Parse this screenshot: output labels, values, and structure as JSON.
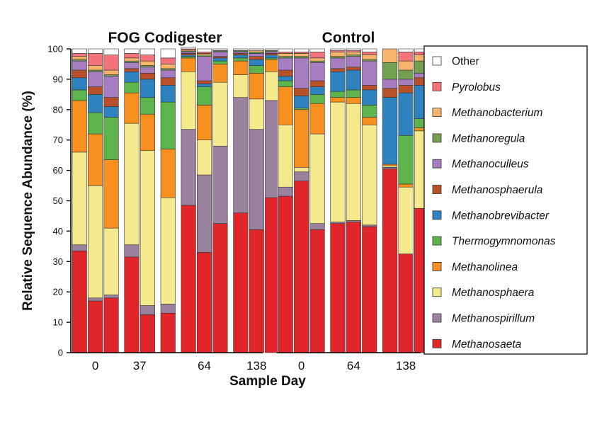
{
  "chart_data": {
    "type": "bar",
    "stacked": true,
    "ylabel": "Relative Sequence Abundance (%)",
    "xlabel": "Sample Day",
    "ylim": [
      0,
      100
    ],
    "yticks": [
      0,
      10,
      20,
      30,
      40,
      50,
      60,
      70,
      80,
      90,
      100
    ],
    "legend": {
      "position": "right",
      "order": [
        "Other",
        "Pyrolobus",
        "Methanobacterium",
        "Methanoregula",
        "Methanoculleus",
        "Methanosphaerula",
        "Methanobrevibacter",
        "Thermogymnomonas",
        "Methanolinea",
        "Methanosphaera",
        "Methanospirillum",
        "Methanosaeta"
      ]
    },
    "stack_order": [
      "Methanosaeta",
      "Methanospirillum",
      "Methanosphaera",
      "Methanolinea",
      "Thermogymnomonas",
      "Methanobrevibacter",
      "Methanosphaerula",
      "Methanoculleus",
      "Methanoregula",
      "Methanobacterium",
      "Pyrolobus",
      "Other"
    ],
    "colors": {
      "Methanosaeta": "#e0262b",
      "Methanospirillum": "#9a819d",
      "Methanosphaera": "#f5e98e",
      "Methanolinea": "#f7901e",
      "Thermogymnomonas": "#5db44c",
      "Methanobrevibacter": "#2f82c0",
      "Methanosphaerula": "#b8512a",
      "Methanoculleus": "#a77dc1",
      "Methanoregula": "#72a050",
      "Methanobacterium": "#f8b36c",
      "Pyrolobus": "#f2737a",
      "Other": "#ffffff"
    },
    "panels": [
      {
        "title": "FOG Codigester",
        "groups": [
          {
            "label": "0",
            "bars": [
              {
                "Methanosaeta": 33.5,
                "Methanospirillum": 2,
                "Methanosphaera": 30.5,
                "Methanolinea": 17,
                "Thermogymnomonas": 3.5,
                "Methanobrevibacter": 4,
                "Methanosphaerula": 2.5,
                "Methanoculleus": 3,
                "Methanoregula": 0.5,
                "Methanobacterium": 1,
                "Pyrolobus": 1,
                "Other": 1.5
              },
              {
                "Methanosaeta": 17,
                "Methanospirillum": 1,
                "Methanosphaera": 37,
                "Methanolinea": 17,
                "Thermogymnomonas": 7,
                "Methanobrevibacter": 6,
                "Methanosphaerula": 2.5,
                "Methanoculleus": 5,
                "Methanoregula": 0.5,
                "Methanobacterium": 1.5,
                "Pyrolobus": 4,
                "Other": 1.5
              },
              {
                "Methanosaeta": 18,
                "Methanospirillum": 1,
                "Methanosphaera": 22,
                "Methanolinea": 22.5,
                "Thermogymnomonas": 14,
                "Methanobrevibacter": 3.5,
                "Methanosphaerula": 3,
                "Methanoculleus": 7,
                "Methanoregula": 0.5,
                "Methanobacterium": 1.5,
                "Pyrolobus": 5,
                "Other": 2
              }
            ]
          },
          {
            "label": "37",
            "bars": [
              {
                "Methanosaeta": 31.5,
                "Methanospirillum": 4,
                "Methanosphaera": 40,
                "Methanolinea": 10,
                "Thermogymnomonas": 3.5,
                "Methanobrevibacter": 3.5,
                "Methanosphaerula": 1,
                "Methanoculleus": 2,
                "Methanoregula": 0.5,
                "Methanobacterium": 1,
                "Pyrolobus": 1.5,
                "Other": 1.5
              },
              {
                "Methanosaeta": 12.5,
                "Methanospirillum": 3,
                "Methanosphaera": 51,
                "Methanolinea": 12,
                "Thermogymnomonas": 5.5,
                "Methanobrevibacter": 6,
                "Methanosphaerula": 2,
                "Methanoculleus": 2,
                "Methanoregula": 0.5,
                "Methanobacterium": 1.5,
                "Pyrolobus": 2,
                "Other": 2
              }
            ]
          },
          {
            "label": "",
            "bars": [
              {
                "Methanosaeta": 13,
                "Methanospirillum": 3,
                "Methanosphaera": 35,
                "Methanolinea": 16,
                "Thermogymnomonas": 15.5,
                "Methanobrevibacter": 5.5,
                "Methanosphaerula": 2.5,
                "Methanoculleus": 2.5,
                "Methanoregula": 0.5,
                "Methanobacterium": 1.5,
                "Pyrolobus": 2,
                "Other": 3
              }
            ]
          },
          {
            "label": "64",
            "bars": [
              {
                "Methanosaeta": 48.5,
                "Methanospirillum": 25,
                "Methanosphaera": 19,
                "Methanolinea": 4.5,
                "Thermogymnomonas": 0.5,
                "Methanobrevibacter": 0.5,
                "Methanosphaerula": 0.5,
                "Methanoculleus": 0.5,
                "Methanoregula": 0.3,
                "Methanobacterium": 0.4,
                "Pyrolobus": 0.3,
                "Other": 0.5
              },
              {
                "Methanosaeta": 33,
                "Methanospirillum": 25.5,
                "Methanosphaera": 11.5,
                "Methanolinea": 11.5,
                "Thermogymnomonas": 6,
                "Methanobrevibacter": 1,
                "Methanosphaerula": 1,
                "Methanoculleus": 8,
                "Methanoregula": 0.5,
                "Methanobacterium": 0.5,
                "Pyrolobus": 0.5,
                "Other": 1
              },
              {
                "Methanosaeta": 42.5,
                "Methanospirillum": 25.5,
                "Methanosphaera": 21,
                "Methanolinea": 6,
                "Thermogymnomonas": 1,
                "Methanobrevibacter": 1,
                "Methanosphaerula": 0.5,
                "Methanoculleus": 1.5,
                "Methanoregula": 0.3,
                "Methanobacterium": 0.2,
                "Pyrolobus": 0,
                "Other": 0.5
              }
            ]
          },
          {
            "label": "138",
            "bars": [
              {
                "Methanosaeta": 46,
                "Methanospirillum": 38,
                "Methanosphaera": 7.5,
                "Methanolinea": 4.5,
                "Thermogymnomonas": 1,
                "Methanobrevibacter": 1,
                "Methanosphaerula": 0.5,
                "Methanoculleus": 0.5,
                "Methanoregula": 0.3,
                "Methanobacterium": 0.2,
                "Pyrolobus": 0,
                "Other": 0.5
              },
              {
                "Methanosaeta": 40.5,
                "Methanospirillum": 33,
                "Methanosphaera": 10,
                "Methanolinea": 8.5,
                "Thermogymnomonas": 2.5,
                "Methanobrevibacter": 2,
                "Methanosphaerula": 1,
                "Methanoculleus": 1,
                "Methanoregula": 0.5,
                "Methanobacterium": 0.5,
                "Pyrolobus": 0,
                "Other": 0.5
              },
              {
                "Methanosaeta": 51,
                "Methanospirillum": 32,
                "Methanosphaera": 9.5,
                "Methanolinea": 4,
                "Thermogymnomonas": 0.5,
                "Methanobrevibacter": 1,
                "Methanosphaerula": 0.5,
                "Methanoculleus": 0.5,
                "Methanoregula": 0.3,
                "Methanobacterium": 0.2,
                "Pyrolobus": 0,
                "Other": 0.5
              }
            ]
          }
        ]
      },
      {
        "title": "Control",
        "groups": [
          {
            "label": "0",
            "bars": [
              {
                "Methanosaeta": 51.5,
                "Methanospirillum": 3,
                "Methanosphaera": 20.5,
                "Methanolinea": 12.5,
                "Thermogymnomonas": 2,
                "Methanobrevibacter": 1.5,
                "Methanosphaerula": 2,
                "Methanoculleus": 4,
                "Methanoregula": 0.5,
                "Methanobacterium": 1,
                "Pyrolobus": 0.5,
                "Other": 1
              },
              {
                "Methanosaeta": 56.5,
                "Methanospirillum": 3,
                "Methanosphaera": 1.5,
                "Methanolinea": 19,
                "Thermogymnomonas": 0.5,
                "Methanobrevibacter": 4,
                "Methanosphaerula": 2.5,
                "Methanoculleus": 10,
                "Methanoregula": 0.5,
                "Methanobacterium": 1,
                "Pyrolobus": 0.5,
                "Other": 1
              },
              {
                "Methanosaeta": 40.5,
                "Methanospirillum": 2,
                "Methanosphaera": 29.5,
                "Methanolinea": 10,
                "Thermogymnomonas": 3,
                "Methanobrevibacter": 2.5,
                "Methanosphaerula": 2,
                "Methanoculleus": 6,
                "Methanoregula": 0.5,
                "Methanobacterium": 1,
                "Pyrolobus": 2,
                "Other": 1
              }
            ]
          },
          {
            "label": "64",
            "bars": [
              {
                "Methanosaeta": 42.5,
                "Methanospirillum": 0.5,
                "Methanosphaera": 39.5,
                "Methanolinea": 1.5,
                "Thermogymnomonas": 2,
                "Methanobrevibacter": 6.5,
                "Methanosphaerula": 1,
                "Methanoculleus": 3.5,
                "Methanoregula": 0.5,
                "Methanobacterium": 1.5,
                "Pyrolobus": 0.5,
                "Other": 0.5
              },
              {
                "Methanosaeta": 43,
                "Methanospirillum": 0.5,
                "Methanosphaera": 38.5,
                "Methanolinea": 2,
                "Thermogymnomonas": 2.5,
                "Methanobrevibacter": 6.5,
                "Methanosphaerula": 1,
                "Methanoculleus": 3.5,
                "Methanoregula": 0.5,
                "Methanobacterium": 1,
                "Pyrolobus": 0.5,
                "Other": 0.5
              },
              {
                "Methanosaeta": 41.5,
                "Methanospirillum": 0.5,
                "Methanosphaera": 33,
                "Methanolinea": 2.5,
                "Thermogymnomonas": 4,
                "Methanobrevibacter": 5,
                "Methanosphaerula": 1.5,
                "Methanoculleus": 8,
                "Methanoregula": 0.5,
                "Methanobacterium": 1.5,
                "Pyrolobus": 1,
                "Other": 1
              }
            ]
          },
          {
            "label": "138",
            "bars": [
              {
                "Methanosaeta": 60.5,
                "Methanospirillum": 0.5,
                "Methanosphaera": 0.5,
                "Methanolinea": 0.5,
                "Thermogymnomonas": 0,
                "Methanobrevibacter": 22,
                "Methanosphaerula": 3,
                "Methanoculleus": 3,
                "Methanoregula": 5.5,
                "Methanobacterium": 4.5,
                "Pyrolobus": 0,
                "Other": 0
              },
              {
                "Methanosaeta": 32.5,
                "Methanospirillum": 0,
                "Methanosphaera": 22,
                "Methanolinea": 1,
                "Thermogymnomonas": 16,
                "Methanobrevibacter": 14,
                "Methanosphaerula": 2.5,
                "Methanoculleus": 2,
                "Methanoregula": 3,
                "Methanobacterium": 3,
                "Pyrolobus": 3,
                "Other": 1
              },
              {
                "Methanosaeta": 47.5,
                "Methanospirillum": 0,
                "Methanosphaera": 25.5,
                "Methanolinea": 1,
                "Thermogymnomonas": 3,
                "Methanobrevibacter": 11,
                "Methanosphaerula": 2.5,
                "Methanoculleus": 1.5,
                "Methanoregula": 4,
                "Methanobacterium": 2,
                "Pyrolobus": 1,
                "Other": 1
              }
            ]
          }
        ]
      }
    ]
  }
}
